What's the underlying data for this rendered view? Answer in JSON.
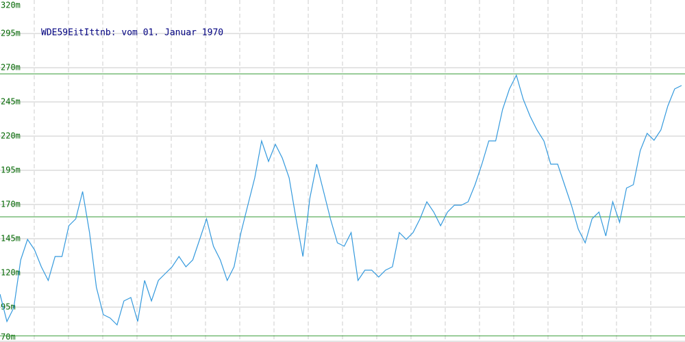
{
  "chart_data": {
    "type": "line",
    "title": "WDE59EitIttnb: vom 01. Januar 1970",
    "ylim": [
      70,
      320
    ],
    "yticks": [
      {
        "value": 70,
        "label": "70m"
      },
      {
        "value": 95,
        "label": "95m"
      },
      {
        "value": 120,
        "label": "120m"
      },
      {
        "value": 145,
        "label": "145m"
      },
      {
        "value": 170,
        "label": "170m"
      },
      {
        "value": 195,
        "label": "195m"
      },
      {
        "value": 220,
        "label": "220m"
      },
      {
        "value": 245,
        "label": "245m"
      },
      {
        "value": 270,
        "label": "270m"
      },
      {
        "value": 295,
        "label": "295m"
      },
      {
        "value": 320,
        "label": "320m"
      }
    ],
    "grid": true,
    "color": "#3399dd",
    "reference_line_color": "#339933",
    "reference_lines": [
      265.5,
      161,
      74
    ],
    "values": [
      104.5,
      84.5,
      94.5,
      129.5,
      144.5,
      137,
      124.5,
      114.5,
      132,
      132,
      154.5,
      159.5,
      179.5,
      149.5,
      109.5,
      89.5,
      87,
      82,
      99.5,
      102,
      84.5,
      114.5,
      99.5,
      114.5,
      119.5,
      124.5,
      132,
      124.5,
      129.5,
      144.5,
      159.5,
      139.5,
      129.5,
      114.5,
      124.5,
      149.5,
      169.5,
      189.5,
      216.5,
      201.5,
      214,
      204,
      189.5,
      159.5,
      132,
      174.5,
      199.5,
      179.5,
      159.5,
      142,
      139.5,
      149.5,
      114.5,
      122,
      122,
      117,
      122,
      124.5,
      149.5,
      144.5,
      149.5,
      159.5,
      172,
      164.5,
      154.5,
      164.5,
      169.5,
      169.5,
      172,
      184.5,
      199.5,
      216.5,
      216.5,
      239.5,
      254.5,
      264.5,
      247,
      234.5,
      224.5,
      216.5,
      199.5,
      199.5,
      184.5,
      169.5,
      152,
      142,
      159.5,
      164.5,
      147,
      172,
      157,
      182,
      184.5,
      209.5,
      222,
      217,
      224.5,
      242,
      254.5,
      257
    ]
  }
}
